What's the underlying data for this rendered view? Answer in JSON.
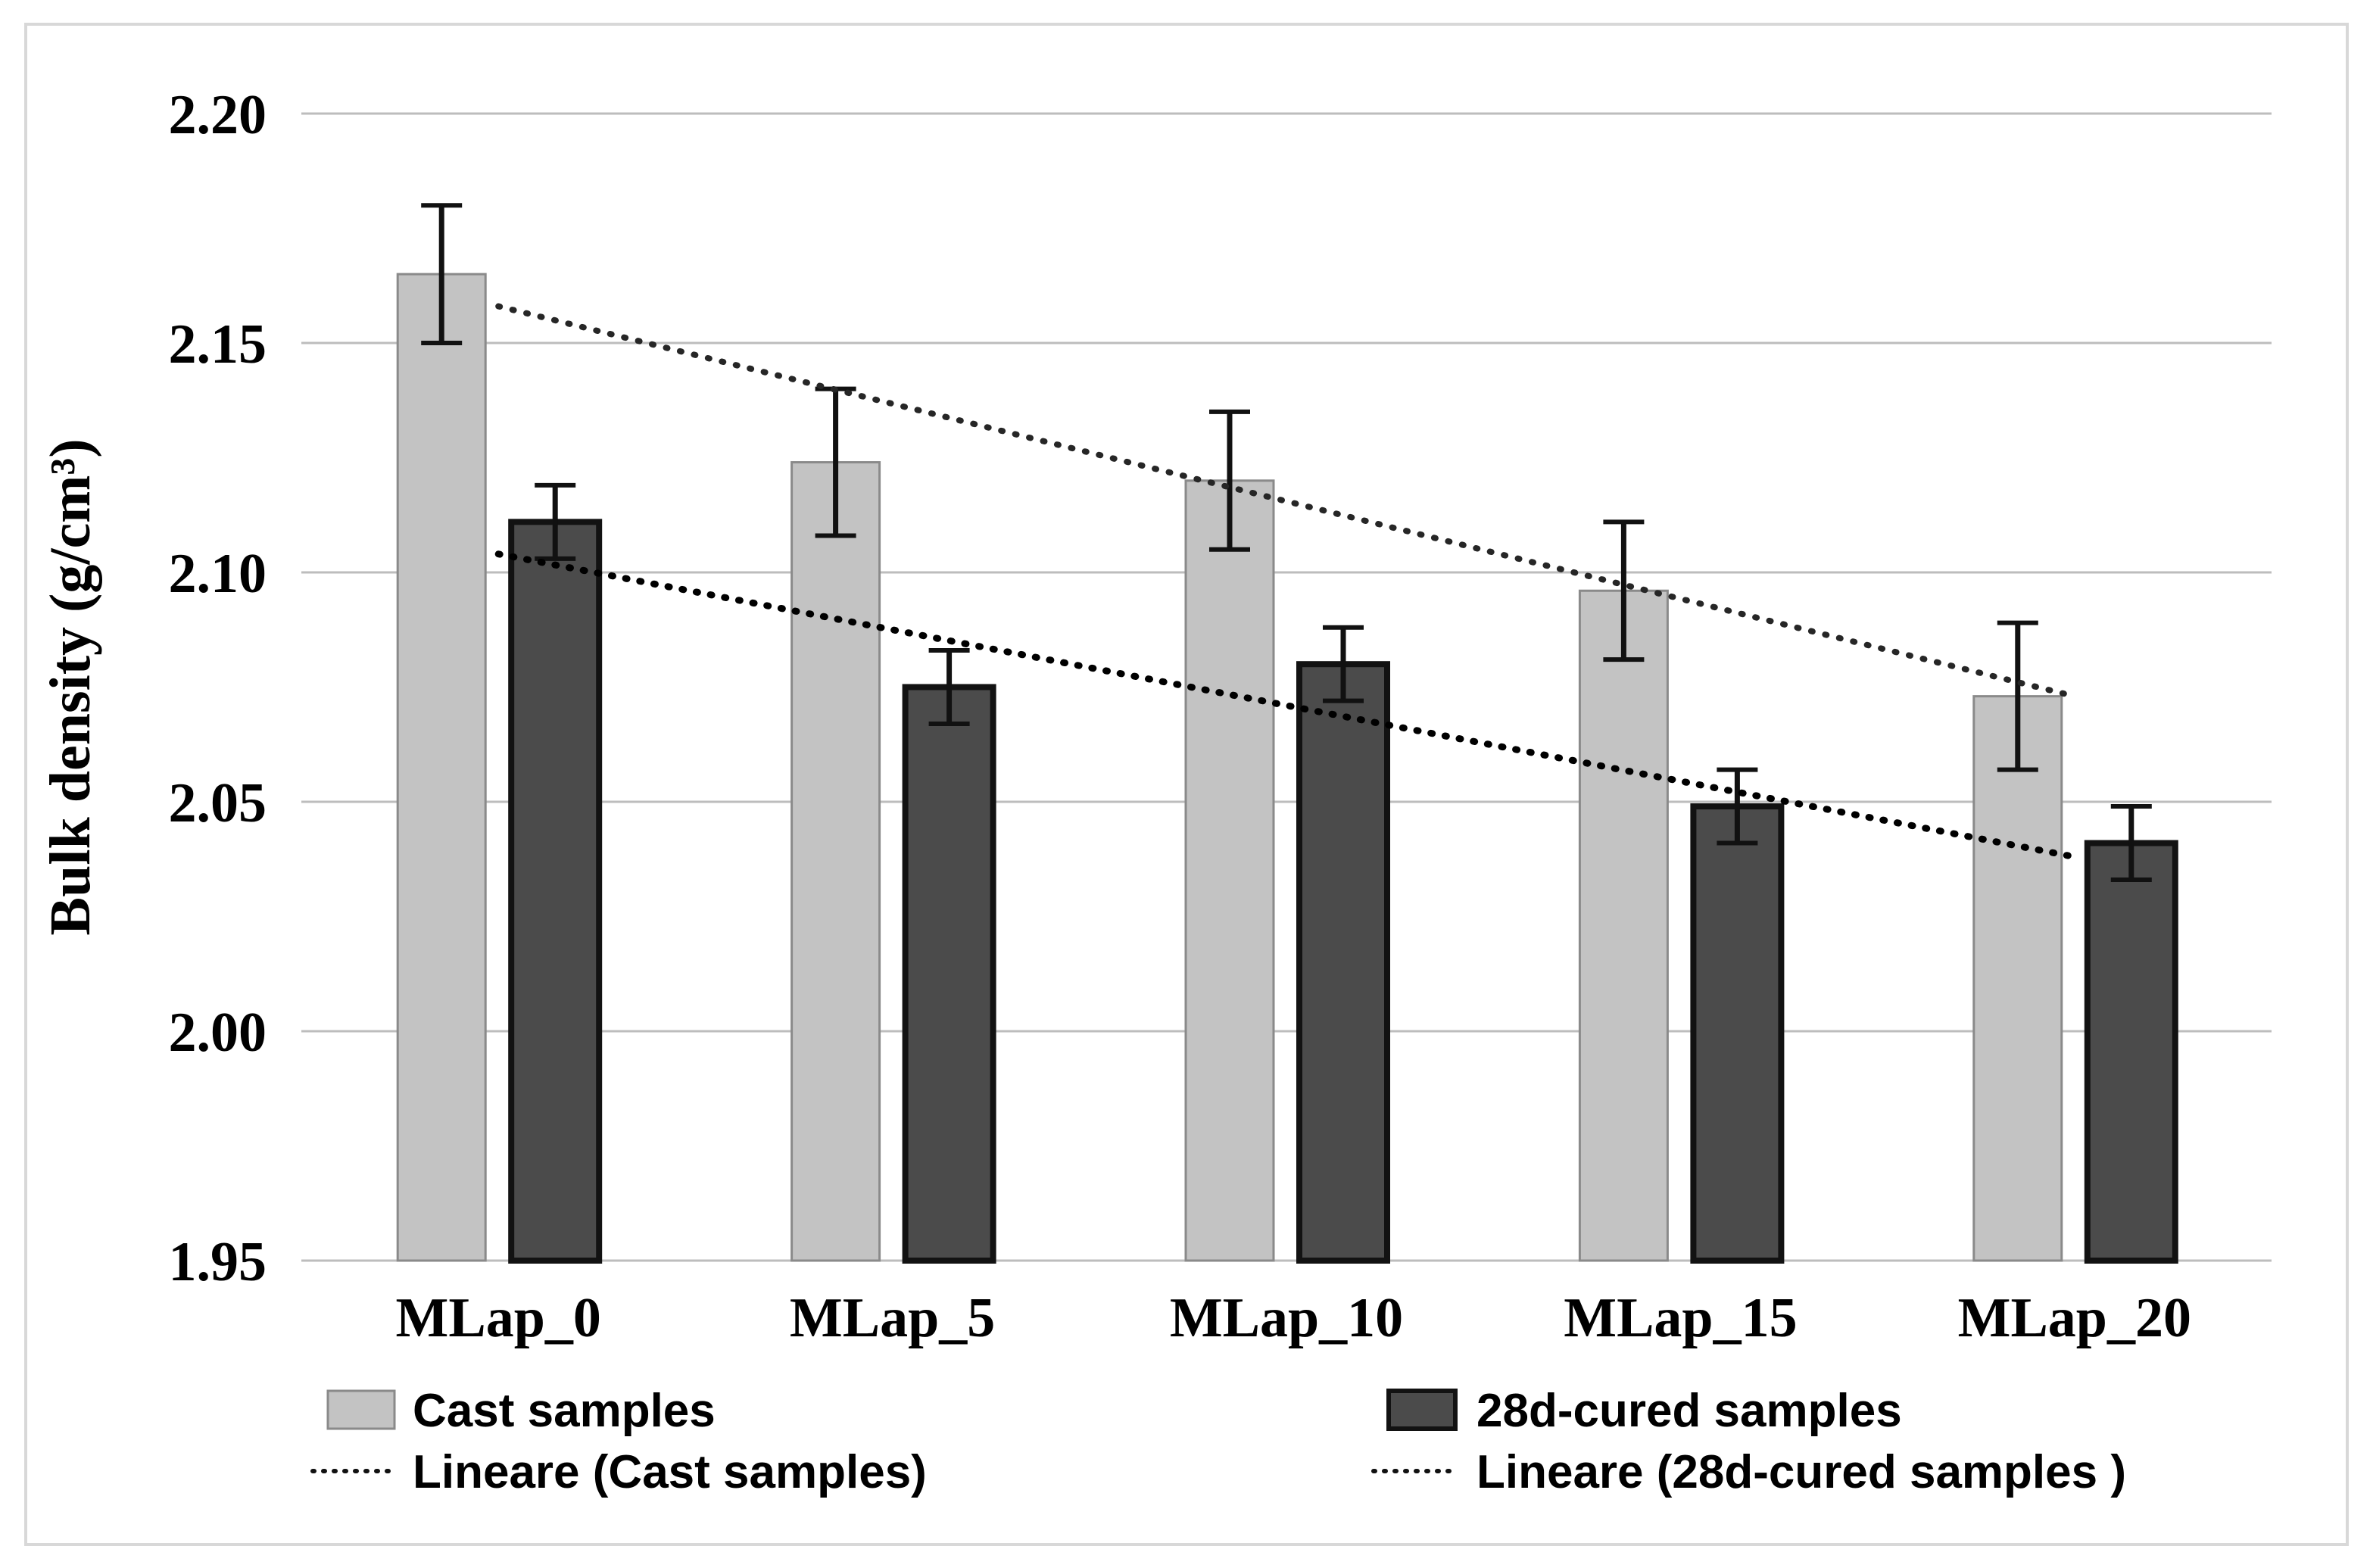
{
  "figure": {
    "background": "#ffffff",
    "border_color": "#d8d8d8"
  },
  "chart_data": {
    "type": "bar",
    "title": "",
    "xlabel": "",
    "ylabel": "Bulk density (g/cm³)",
    "ylim": [
      1.95,
      2.2
    ],
    "ytick_step": 0.05,
    "ytick_labels": [
      "2.20",
      "2.15",
      "2.10",
      "2.05",
      "2.00",
      "1.95"
    ],
    "ytick_values": [
      2.2,
      2.15,
      2.1,
      2.05,
      2.0,
      1.95
    ],
    "grid": "horizontal",
    "gridline_color": "#bdbdbd",
    "categories": [
      "MLap_0",
      "MLap_5",
      "MLap_10",
      "MLap_15",
      "MLap_20"
    ],
    "series": [
      {
        "name": "Cast samples",
        "fill": "#c3c3c3",
        "border": "#8a8a8a",
        "values": [
          2.165,
          2.124,
          2.12,
          2.096,
          2.073
        ],
        "errors": [
          0.015,
          0.016,
          0.015,
          0.015,
          0.016
        ]
      },
      {
        "name": "28d-cured samples",
        "fill": "#4b4b4b",
        "border": "#121212",
        "values": [
          2.111,
          2.075,
          2.08,
          2.049,
          2.041
        ],
        "errors": [
          0.008,
          0.008,
          0.008,
          0.008,
          0.008
        ]
      }
    ],
    "trendlines": [
      {
        "name": "Lineare (Cast samples)",
        "series": "Cast samples",
        "start_value": 2.158,
        "end_value": 2.073,
        "color": "#262626",
        "style": "dotted"
      },
      {
        "name": "Lineare (28d-cured samples )",
        "series": "28d-cured samples",
        "start_value": 2.104,
        "end_value": 2.038,
        "color": "#000000",
        "style": "dotted"
      }
    ],
    "error_bar_color": "#111111",
    "legend_position": "bottom"
  },
  "legend": {
    "items": [
      {
        "label": "Cast samples",
        "swatch": "bar-cast"
      },
      {
        "label": "Lineare (Cast samples)",
        "swatch": "dotted-line"
      },
      {
        "label": "28d-cured samples",
        "swatch": "bar-cured"
      },
      {
        "label": "Lineare (28d-cured samples )",
        "swatch": "dotted-line"
      }
    ]
  }
}
